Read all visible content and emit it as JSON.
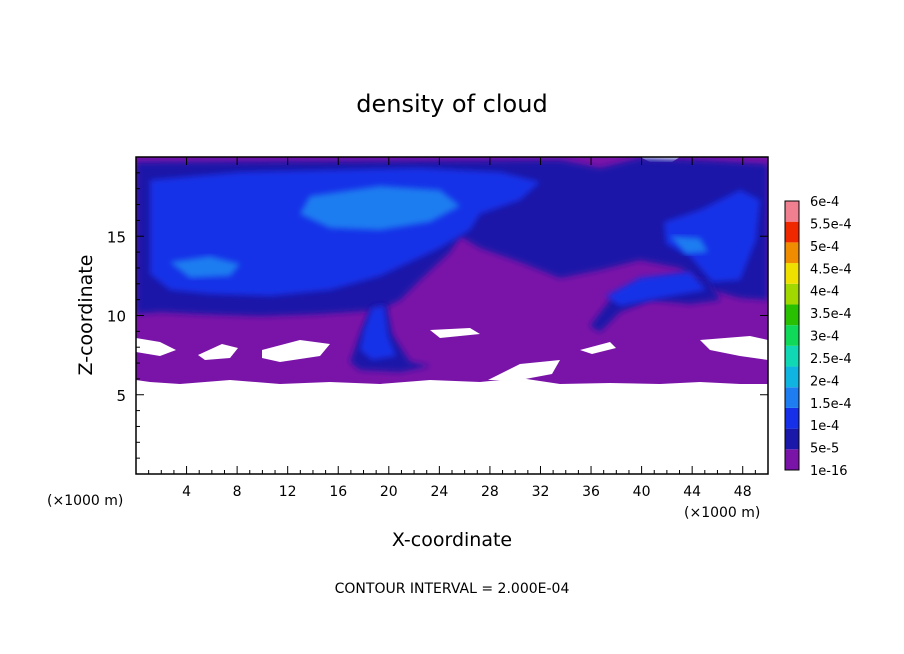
{
  "chart_data": {
    "type": "heatmap",
    "title": "density of cloud",
    "xlabel": "X-coordinate",
    "ylabel": "Z-coordinate",
    "x_unit_left": "(×1000 m)",
    "x_unit_right": "(×1000 m)",
    "xlim": [
      0,
      50
    ],
    "ylim": [
      0,
      20
    ],
    "x_ticks": [
      4,
      8,
      12,
      16,
      20,
      24,
      28,
      32,
      36,
      40,
      44,
      48
    ],
    "y_ticks": [
      5,
      10,
      15
    ],
    "x_tick_labels": [
      "4",
      "8",
      "12",
      "16",
      "20",
      "24",
      "28",
      "32",
      "36",
      "40",
      "44",
      "48"
    ],
    "y_tick_labels": [
      "5",
      "10",
      "15"
    ],
    "footer": "CONTOUR INTERVAL = 2.000E-04",
    "colorbar": {
      "levels": [
        "1e-16",
        "5e-5",
        "1e-4",
        "1.5e-4",
        "2e-4",
        "2.5e-4",
        "3e-4",
        "3.5e-4",
        "4e-4",
        "4.5e-4",
        "5e-4",
        "5.5e-4",
        "6e-4"
      ],
      "colors": [
        "#7a14a8",
        "#1a18a8",
        "#1530e8",
        "#1e7df0",
        "#10b4e0",
        "#10d8b4",
        "#10d858",
        "#28c000",
        "#a0d800",
        "#f0e000",
        "#f08c00",
        "#f02800",
        "#f08090"
      ]
    },
    "field": {
      "cloud_base_km": 6,
      "cloud_top_km": 20,
      "description_levels": "purple 1e-16 outer cloud, blue 5e-5 to 1.5e-4 core"
    }
  }
}
